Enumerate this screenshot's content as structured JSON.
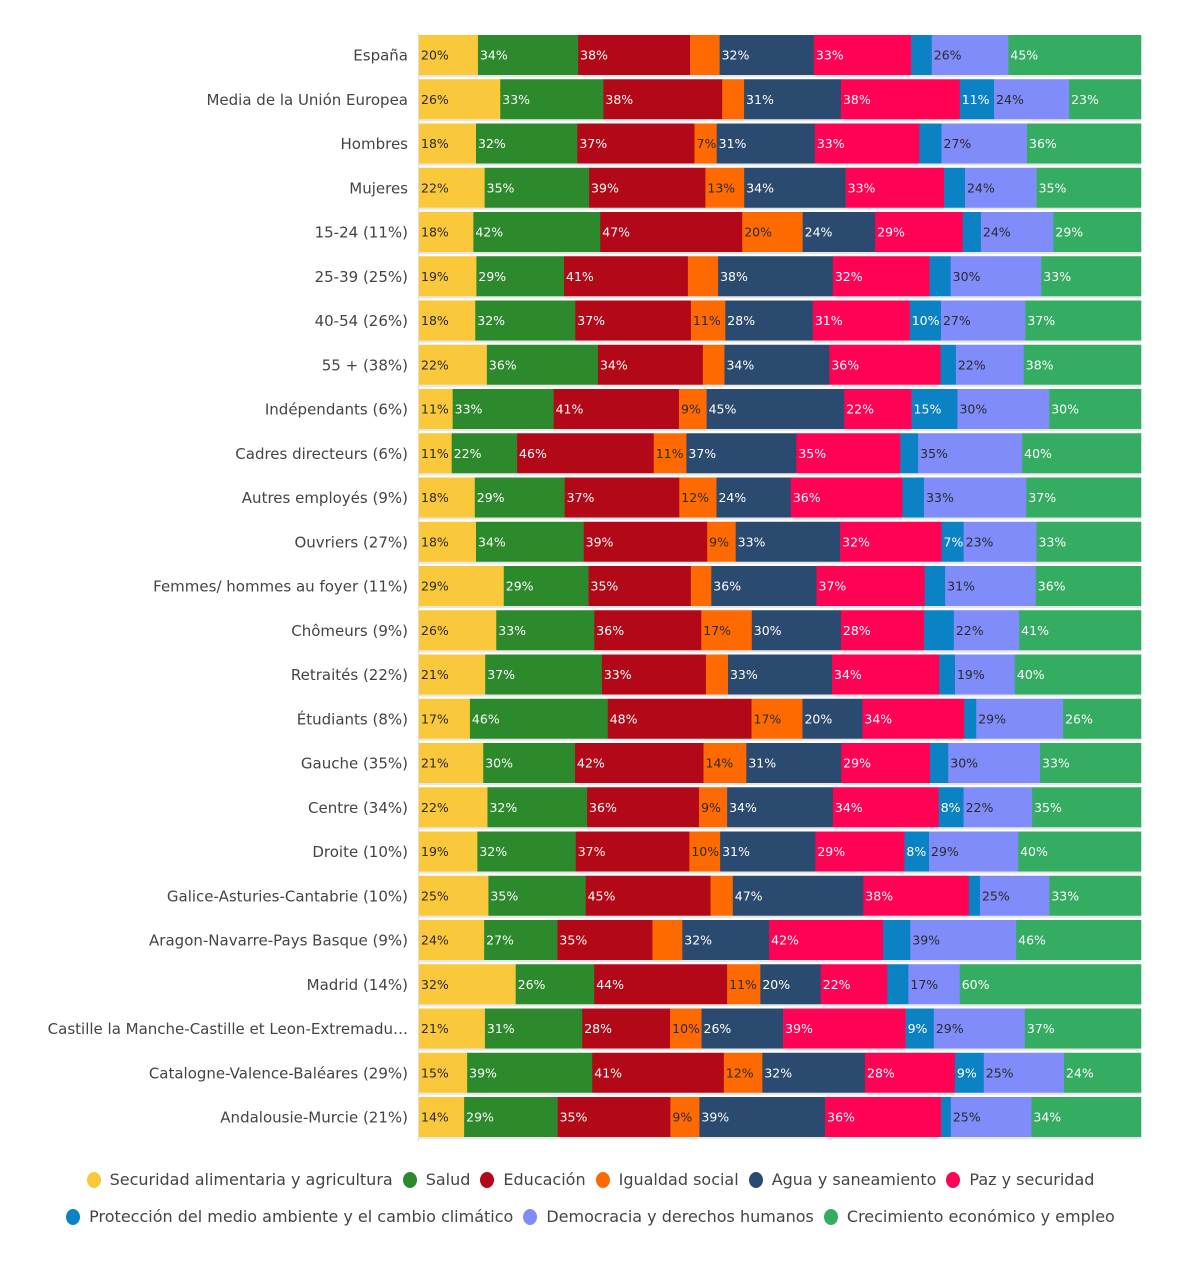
{
  "chart_data": {
    "type": "bar",
    "orientation": "horizontal",
    "stacked": true,
    "normalized": true,
    "title": "",
    "xlabel": "",
    "ylabel": "",
    "value_suffix": "%",
    "legend_position": "bottom",
    "categories": [
      "España",
      "Media de la Unión Europea",
      "Hombres",
      "Mujeres",
      "15-24 (11%)",
      "25-39 (25%)",
      "40-54 (26%)",
      "55 + (38%)",
      "Indépendants (6%)",
      "Cadres directeurs (6%)",
      "Autres employés (9%)",
      "Ouvriers (27%)",
      "Femmes/ hommes au foyer (11%)",
      "Chômeurs (9%)",
      "Retraités (22%)",
      "Étudiants (8%)",
      "Gauche (35%)",
      "Centre (34%)",
      "Droite (10%)",
      "Galice-Asturies-Cantabrie (10%)",
      "Aragon-Navarre-Pays Basque (9%)",
      "Madrid (14%)",
      "Castille la Manche-Castille et Leon-Extremadu…",
      "Catalogne-Valence-Baléares (29%)",
      "Andalousie-Murcie (21%)"
    ],
    "series": [
      {
        "name": "Securidad alimentaria y agricultura",
        "color": "#fac93b",
        "label_color": "#2a2a2a",
        "values": [
          20,
          26,
          18,
          22,
          18,
          19,
          18,
          22,
          11,
          11,
          18,
          18,
          29,
          26,
          21,
          17,
          21,
          22,
          19,
          25,
          24,
          32,
          21,
          15,
          14
        ],
        "labeled": [
          1,
          1,
          1,
          1,
          1,
          1,
          1,
          1,
          1,
          1,
          1,
          1,
          1,
          1,
          1,
          1,
          1,
          1,
          1,
          1,
          1,
          1,
          1,
          1,
          1
        ]
      },
      {
        "name": "Salud",
        "color": "#2c8a2c",
        "label_color": "#ffffff",
        "values": [
          34,
          33,
          32,
          35,
          42,
          29,
          32,
          36,
          33,
          22,
          29,
          34,
          29,
          33,
          37,
          46,
          30,
          32,
          32,
          35,
          27,
          26,
          31,
          39,
          29
        ],
        "labeled": [
          1,
          1,
          1,
          1,
          1,
          1,
          1,
          1,
          1,
          1,
          1,
          1,
          1,
          1,
          1,
          1,
          1,
          1,
          1,
          1,
          1,
          1,
          1,
          1,
          1
        ]
      },
      {
        "name": "Educación",
        "color": "#b20818",
        "label_color": "#ffffff",
        "values": [
          38,
          38,
          37,
          39,
          47,
          41,
          37,
          34,
          41,
          46,
          37,
          39,
          35,
          36,
          33,
          48,
          42,
          36,
          37,
          45,
          35,
          44,
          28,
          41,
          35
        ],
        "labeled": [
          1,
          1,
          1,
          1,
          1,
          1,
          1,
          1,
          1,
          1,
          1,
          1,
          1,
          1,
          1,
          1,
          1,
          1,
          1,
          1,
          1,
          1,
          1,
          1,
          1
        ]
      },
      {
        "name": "Igualdad social",
        "color": "#ff6a00",
        "label_color": "#2a2a2a",
        "values": [
          10,
          7,
          7,
          13,
          20,
          10,
          11,
          7,
          9,
          11,
          12,
          9,
          7,
          17,
          7,
          17,
          14,
          9,
          10,
          8,
          11,
          11,
          10,
          12,
          9
        ],
        "labeled": [
          0,
          0,
          1,
          1,
          1,
          0,
          1,
          0,
          1,
          1,
          1,
          1,
          0,
          1,
          0,
          1,
          1,
          1,
          1,
          0,
          0,
          1,
          1,
          1,
          1
        ]
      },
      {
        "name": "Agua y saneamiento",
        "color": "#2b4a6f",
        "label_color": "#ffffff",
        "values": [
          32,
          31,
          31,
          34,
          24,
          38,
          28,
          34,
          45,
          37,
          24,
          33,
          36,
          30,
          33,
          20,
          31,
          34,
          31,
          47,
          32,
          20,
          26,
          32,
          39
        ],
        "labeled": [
          1,
          1,
          1,
          1,
          1,
          1,
          1,
          1,
          1,
          1,
          1,
          1,
          1,
          1,
          1,
          1,
          1,
          1,
          1,
          1,
          1,
          1,
          1,
          1,
          1
        ]
      },
      {
        "name": "Paz y securidad",
        "color": "#ff0253",
        "label_color": "#ffffff",
        "values": [
          33,
          38,
          33,
          33,
          29,
          32,
          31,
          36,
          22,
          35,
          36,
          32,
          37,
          28,
          34,
          34,
          29,
          34,
          29,
          38,
          42,
          22,
          39,
          28,
          36
        ],
        "labeled": [
          1,
          1,
          1,
          1,
          1,
          1,
          1,
          1,
          1,
          1,
          1,
          1,
          1,
          1,
          1,
          1,
          1,
          1,
          1,
          1,
          1,
          1,
          1,
          1,
          1
        ]
      },
      {
        "name": "Protección del medio ambiente y el cambio climático",
        "color": "#0b82c4",
        "label_color": "#ffffff",
        "values": [
          7,
          11,
          7,
          7,
          6,
          7,
          10,
          5,
          15,
          6,
          7,
          7,
          7,
          10,
          5,
          4,
          6,
          8,
          8,
          4,
          10,
          7,
          9,
          9,
          3
        ],
        "labeled": [
          0,
          1,
          0,
          0,
          0,
          0,
          1,
          0,
          1,
          0,
          0,
          1,
          0,
          0,
          0,
          0,
          0,
          1,
          1,
          0,
          0,
          0,
          1,
          1,
          0
        ]
      },
      {
        "name": "Democracia y derechos humanos",
        "color": "#7f8cf9",
        "label_color": "#2a2a2a",
        "values": [
          26,
          24,
          27,
          24,
          24,
          30,
          27,
          22,
          30,
          35,
          33,
          23,
          31,
          22,
          19,
          29,
          30,
          22,
          29,
          25,
          39,
          17,
          29,
          25,
          25
        ],
        "labeled": [
          1,
          1,
          1,
          1,
          1,
          1,
          1,
          1,
          1,
          1,
          1,
          1,
          1,
          1,
          1,
          1,
          1,
          1,
          1,
          1,
          1,
          1,
          1,
          1,
          1
        ]
      },
      {
        "name": "Crecimiento económico y empleo",
        "color": "#34ac62",
        "label_color": "#ffffff",
        "values": [
          45,
          23,
          36,
          35,
          29,
          33,
          37,
          38,
          30,
          40,
          37,
          33,
          36,
          41,
          40,
          26,
          33,
          35,
          40,
          33,
          46,
          60,
          37,
          24,
          34
        ],
        "labeled": [
          1,
          1,
          1,
          1,
          1,
          1,
          1,
          1,
          1,
          1,
          1,
          1,
          1,
          1,
          1,
          1,
          1,
          1,
          1,
          1,
          1,
          1,
          1,
          1,
          1
        ]
      }
    ]
  },
  "legend": {
    "row1": [
      0,
      1,
      2,
      3,
      4,
      5
    ],
    "row2": [
      6,
      7,
      8
    ]
  }
}
